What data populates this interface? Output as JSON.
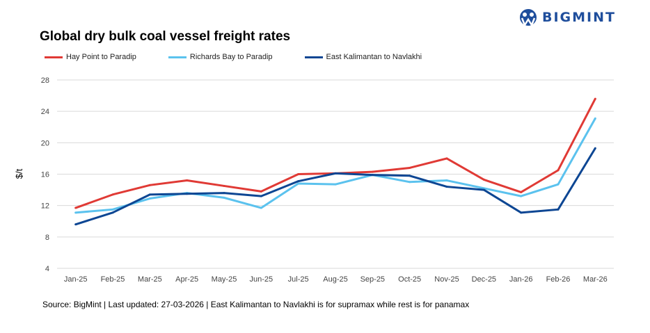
{
  "logo": {
    "text": "BIGMINT"
  },
  "chart_data": {
    "type": "line",
    "title": "Global dry bulk coal vessel freight rates",
    "xlabel": "",
    "ylabel": "$/t",
    "ylim": [
      4,
      28
    ],
    "yticks": [
      4,
      8,
      12,
      16,
      20,
      24,
      28
    ],
    "grid": true,
    "legend": "top-left",
    "categories": [
      "Jan-25",
      "Feb-25",
      "Mar-25",
      "Apr-25",
      "May-25",
      "Jun-25",
      "Jul-25",
      "Aug-25",
      "Sep-25",
      "Oct-25",
      "Nov-25",
      "Dec-25",
      "Jan-26",
      "Feb-26",
      "Mar-26"
    ],
    "series": [
      {
        "name": "Hay Point to Paradip",
        "color": "#e03a35",
        "values": [
          11.7,
          13.4,
          14.6,
          15.2,
          14.5,
          13.8,
          16.0,
          16.1,
          16.3,
          16.8,
          18.0,
          15.3,
          13.7,
          16.5,
          25.6
        ]
      },
      {
        "name": "Richards Bay to Paradip",
        "color": "#5bc2ee",
        "values": [
          11.1,
          11.5,
          12.9,
          13.6,
          13.0,
          11.7,
          14.8,
          14.7,
          15.9,
          15.0,
          15.2,
          14.2,
          13.2,
          14.7,
          23.1
        ]
      },
      {
        "name": "East Kalimantan to Navlakhi",
        "color": "#0d4693",
        "values": [
          9.6,
          11.1,
          13.4,
          13.5,
          13.6,
          13.2,
          15.1,
          16.1,
          15.9,
          15.8,
          14.4,
          14.0,
          11.1,
          11.5,
          19.3
        ]
      }
    ]
  },
  "footer": {
    "source": "Source: BigMint | Last updated: 27-03-2026 | East Kalimantan to Navlakhi is for supramax while rest is for panamax"
  }
}
